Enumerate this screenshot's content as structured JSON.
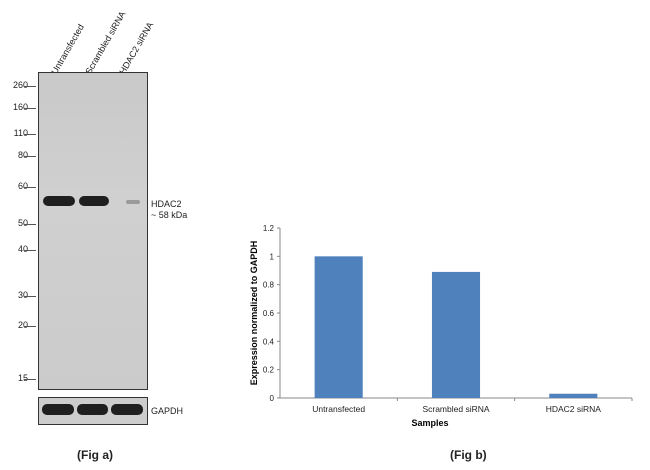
{
  "fig_a": {
    "lanes": [
      "Untransfected",
      "Scrambled siRNA",
      "HDAC2 siRNA"
    ],
    "markers": [
      "260",
      "160",
      "110",
      "80",
      "60",
      "50",
      "40",
      "30",
      "20",
      "15"
    ],
    "target_label": "HDAC2",
    "target_size": "~ 58 kDa",
    "loading_control": "GAPDH",
    "caption": "(Fig a)"
  },
  "fig_b": {
    "caption": "(Fig b)"
  },
  "chart_data": {
    "type": "bar",
    "categories": [
      "Untransfected",
      "Scrambled siRNA",
      "HDAC2 siRNA"
    ],
    "values": [
      1.0,
      0.89,
      0.03
    ],
    "xlabel": "Samples",
    "ylabel": "Expression  normalized to GAPDH",
    "ylim": [
      0,
      1.2
    ],
    "yticks": [
      "0",
      "0.2",
      "0.4",
      "0.6",
      "0.8",
      "1",
      "1.2"
    ],
    "bar_color": "#4f81bd",
    "grid": false
  }
}
